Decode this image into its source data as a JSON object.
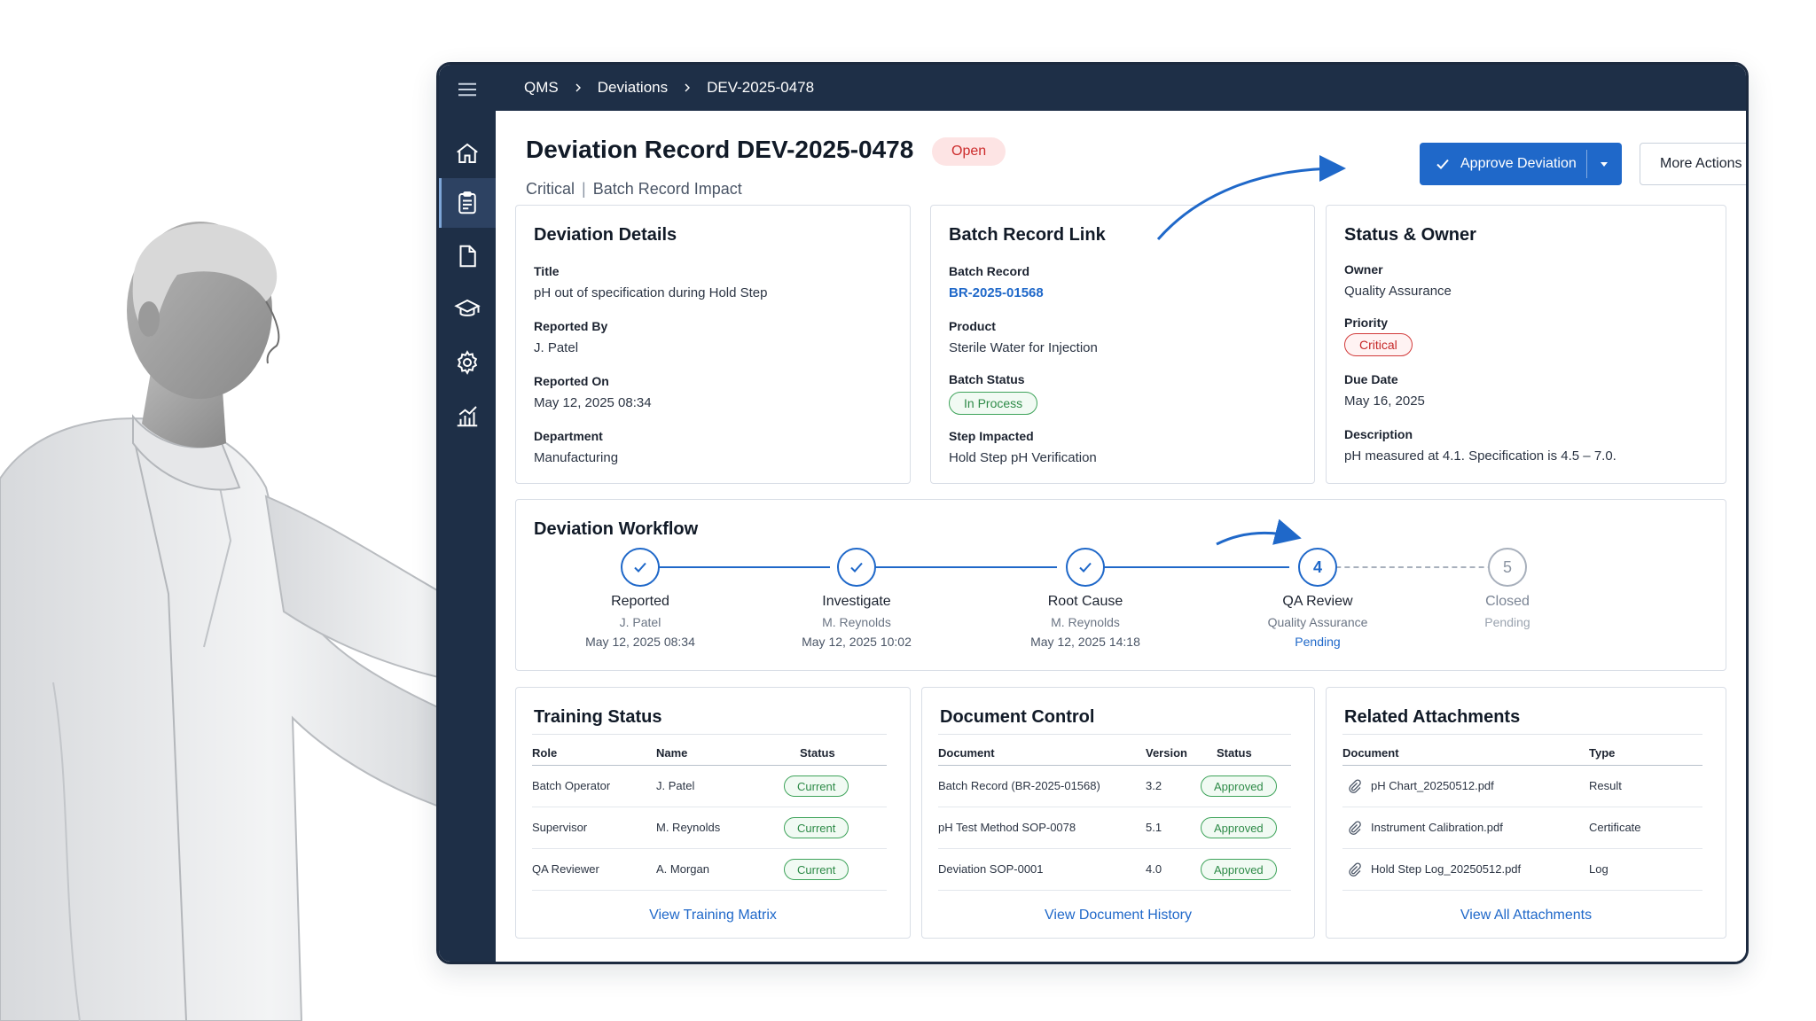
{
  "breadcrumb": [
    "QMS",
    "Deviations",
    "DEV-2025-0478"
  ],
  "sidebar": {
    "items": [
      {
        "icon": "home-icon"
      },
      {
        "icon": "clipboard-icon",
        "active": true
      },
      {
        "icon": "document-icon"
      },
      {
        "icon": "graduation-cap-icon"
      },
      {
        "icon": "gear-icon"
      },
      {
        "icon": "bar-chart-icon"
      }
    ]
  },
  "header": {
    "title": "Deviation Record DEV-2025-0478",
    "status_badge": "Open",
    "severity": "Critical",
    "impact": "Batch Record Impact",
    "approve_label": "Approve Deviation",
    "more_actions_label": "More Actions"
  },
  "deviation_details": {
    "title": "Deviation Details",
    "fields": [
      {
        "label": "Title",
        "value": "pH out of specification during Hold Step"
      },
      {
        "label": "Reported By",
        "value": "J. Patel"
      },
      {
        "label": "Reported On",
        "value": "May 12, 2025 08:34"
      },
      {
        "label": "Department",
        "value": "Manufacturing"
      }
    ]
  },
  "batch_record_link": {
    "title": "Batch Record Link",
    "batch_record_label": "Batch Record",
    "batch_record_value": "BR-2025-01568",
    "product_label": "Product",
    "product_value": "Sterile Water for Injection",
    "batch_status_label": "Batch Status",
    "batch_status_value": "In Process",
    "step_label": "Step Impacted",
    "step_value": "Hold Step pH Verification"
  },
  "status_owner": {
    "title": "Status & Owner",
    "owner_label": "Owner",
    "owner_value": "Quality Assurance",
    "priority_label": "Priority",
    "priority_value": "Critical",
    "due_label": "Due Date",
    "due_value": "May 16, 2025",
    "description_label": "Description",
    "description_value": "pH measured at 4.1. Specification is 4.5 – 7.0."
  },
  "workflow": {
    "title": "Deviation Workflow",
    "steps": [
      {
        "name": "Reported",
        "person": "J. Patel",
        "date": "May 12, 2025 08:34",
        "state": "done"
      },
      {
        "name": "Investigate",
        "person": "M. Reynolds",
        "date": "May 12, 2025 10:02",
        "state": "done"
      },
      {
        "name": "Root Cause",
        "person": "M. Reynolds",
        "date": "May 12, 2025 14:18",
        "state": "done"
      },
      {
        "name": "QA Review",
        "number": "4",
        "person": "Quality Assurance",
        "status": "Pending",
        "state": "current"
      },
      {
        "name": "Closed",
        "number": "5",
        "status": "Pending",
        "state": "future"
      }
    ]
  },
  "training": {
    "title": "Training Status",
    "columns": [
      "Role",
      "Name",
      "Status"
    ],
    "rows": [
      {
        "role": "Batch Operator",
        "name": "J. Patel",
        "status": "Current"
      },
      {
        "role": "Supervisor",
        "name": "M. Reynolds",
        "status": "Current"
      },
      {
        "role": "QA Reviewer",
        "name": "A. Morgan",
        "status": "Current"
      }
    ],
    "link": "View Training Matrix"
  },
  "document_control": {
    "title": "Document Control",
    "columns": [
      "Document",
      "Version",
      "Status"
    ],
    "rows": [
      {
        "document": "Batch Record (BR-2025-01568)",
        "version": "3.2",
        "status": "Approved"
      },
      {
        "document": "pH Test Method SOP-0078",
        "version": "5.1",
        "status": "Approved"
      },
      {
        "document": "Deviation SOP-0001",
        "version": "4.0",
        "status": "Approved"
      }
    ],
    "link": "View Document History"
  },
  "attachments": {
    "title": "Related Attachments",
    "columns": [
      "Document",
      "Type"
    ],
    "rows": [
      {
        "document": "pH Chart_20250512.pdf",
        "type": "Result"
      },
      {
        "document": "Instrument Calibration.pdf",
        "type": "Certificate"
      },
      {
        "document": "Hold Step Log_20250512.pdf",
        "type": "Log"
      }
    ],
    "link": "View All Attachments"
  },
  "colors": {
    "nav": "#1e2f47",
    "accent": "#1f68c9",
    "success": "#2d8a47",
    "danger": "#c62828"
  }
}
